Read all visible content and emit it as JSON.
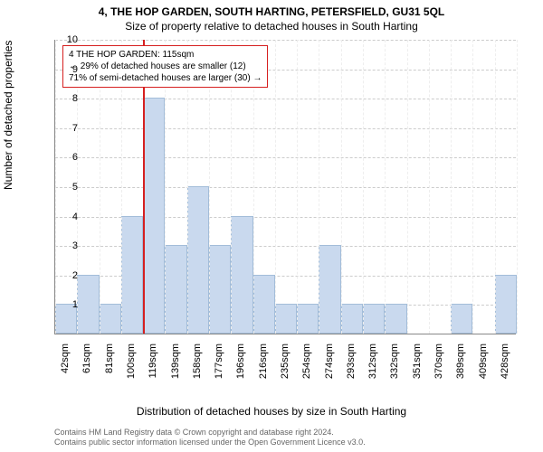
{
  "title_main": "4, THE HOP GARDEN, SOUTH HARTING, PETERSFIELD, GU31 5QL",
  "title_sub": "Size of property relative to detached houses in South Harting",
  "ylabel": "Number of detached properties",
  "xlabel": "Distribution of detached houses by size in South Harting",
  "footer_line1": "Contains HM Land Registry data © Crown copyright and database right 2024.",
  "footer_line2": "Contains public sector information licensed under the Open Government Licence v3.0.",
  "chart": {
    "type": "histogram",
    "background_color": "#ffffff",
    "bar_fill": "#c9d9ee",
    "bar_stroke": "#a3bdd9",
    "grid_color": "#cccccc",
    "axis_color": "#888888",
    "marker_color": "#d62020",
    "ylim": [
      0,
      10
    ],
    "yticks": [
      1,
      2,
      3,
      4,
      5,
      6,
      7,
      8,
      9,
      10
    ],
    "xtick_labels": [
      "42sqm",
      "61sqm",
      "81sqm",
      "100sqm",
      "119sqm",
      "139sqm",
      "158sqm",
      "177sqm",
      "196sqm",
      "216sqm",
      "235sqm",
      "254sqm",
      "274sqm",
      "293sqm",
      "312sqm",
      "332sqm",
      "351sqm",
      "370sqm",
      "389sqm",
      "409sqm",
      "428sqm"
    ],
    "bar_values": [
      1,
      2,
      1,
      4,
      8,
      3,
      5,
      3,
      4,
      2,
      1,
      1,
      3,
      1,
      1,
      1,
      0,
      0,
      1,
      0,
      2
    ],
    "marker_bin_index": 4,
    "info_box": {
      "line1": "4 THE HOP GARDEN: 115sqm",
      "line2": "← 29% of detached houses are smaller (12)",
      "line3": "71% of semi-detached houses are larger (30) →"
    },
    "title_fontsize": 12,
    "label_fontsize": 12,
    "tick_fontsize": 11,
    "footer_fontsize": 9
  }
}
